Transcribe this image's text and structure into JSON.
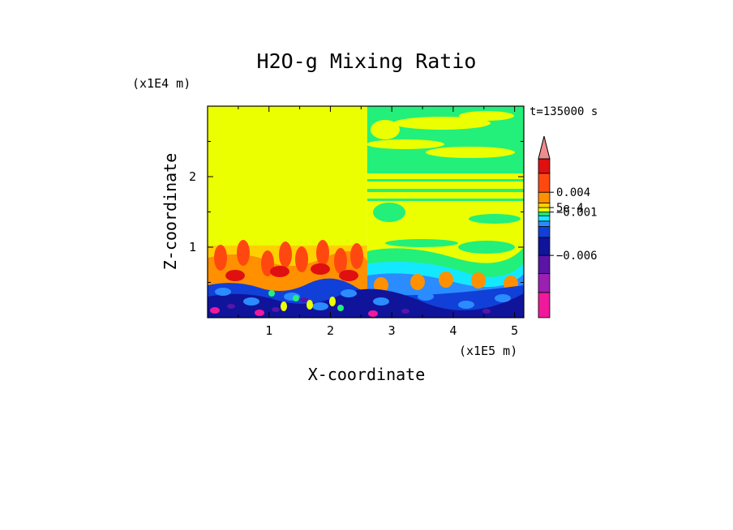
{
  "chart_data": {
    "type": "heatmap",
    "title": "H2O-g Mixing Ratio",
    "xlabel": "X-coordinate",
    "ylabel": "Z-coordinate",
    "x_unit": "(x1E5 m)",
    "y_unit": "(x1E4 m)",
    "time_label": "t=135000 s",
    "xlim": [
      0,
      5.15
    ],
    "ylim": [
      0,
      3
    ],
    "x_ticks": [
      1,
      2,
      3,
      4,
      5
    ],
    "x_tick_labels": [
      "1",
      "2",
      "3",
      "4",
      "5"
    ],
    "y_ticks": [
      1,
      2
    ],
    "y_tick_labels": [
      "1",
      "2"
    ],
    "colorbar": {
      "colors": [
        "#f0189c",
        "#9c1fb4",
        "#5a14a8",
        "#10149a",
        "#1040d8",
        "#2a8cff",
        "#14e8ff",
        "#22f07a",
        "#ecff00",
        "#ffd000",
        "#ff9000",
        "#ff4810",
        "#e01010",
        "#f08c8c"
      ],
      "labels": [
        {
          "text": "0.004",
          "level": 0.004
        },
        {
          "text": "5e-4",
          "level": 0.0005
        },
        {
          "text": "−0.001",
          "level": -0.001
        },
        {
          "text": "−0.006",
          "level": -0.006
        }
      ],
      "extend": "max"
    },
    "regions": [
      {
        "x0": 0,
        "x1": 2.6,
        "z0": 1.05,
        "z1": 3,
        "level": "yellow"
      },
      {
        "x0": 2.6,
        "x1": 5.15,
        "z0": 2.55,
        "z1": 3,
        "level": "green"
      },
      {
        "x0": 2.6,
        "x1": 5.15,
        "z0": 1.3,
        "z1": 2.55,
        "level": "yellow-green bands"
      },
      {
        "x0": 0,
        "x1": 2.6,
        "z0": 0.55,
        "z1": 1.05,
        "level": "orange-red plumes"
      },
      {
        "x0": 2.6,
        "x1": 5.15,
        "z0": 0.55,
        "z1": 1.3,
        "level": "cyan-green plumes"
      },
      {
        "x0": 0,
        "x1": 5.15,
        "z0": 0,
        "z1": 0.55,
        "level": "blue-navy"
      }
    ]
  }
}
